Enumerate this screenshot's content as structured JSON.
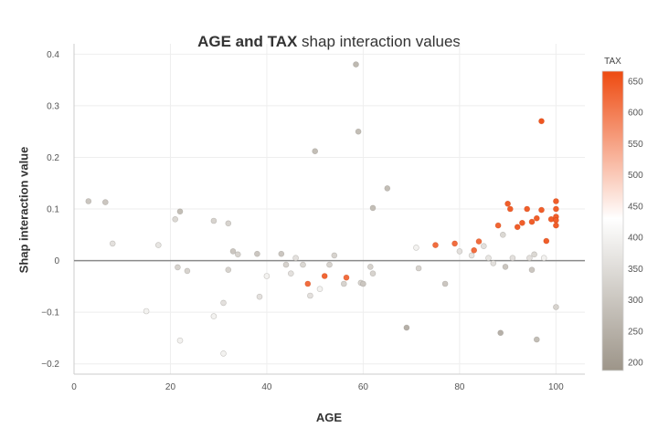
{
  "chart_data": {
    "type": "scatter",
    "title_bold": "AGE and TAX",
    "title_rest": " shap interaction values",
    "xlabel": "AGE",
    "ylabel": "Shap interaction value",
    "xlim": [
      0,
      106
    ],
    "ylim": [
      -0.22,
      0.42
    ],
    "x_ticks": [
      0,
      20,
      40,
      60,
      80,
      100
    ],
    "y_ticks": [
      -0.2,
      -0.1,
      0,
      0.1,
      0.2,
      0.3,
      0.4
    ],
    "y_tick_labels": [
      "−0.2",
      "−0.1",
      "0",
      "0.1",
      "0.2",
      "0.3",
      "0.4"
    ],
    "grid": true,
    "zero_line": true,
    "colorbar": {
      "title": "TAX",
      "min": 187,
      "max": 666,
      "ticks": [
        200,
        250,
        300,
        350,
        400,
        450,
        500,
        550,
        600,
        650
      ],
      "colors": {
        "low": "#9d9589",
        "mid": "#ffffff",
        "high": "#ee4a10"
      },
      "mid_value": 430
    },
    "points": [
      {
        "x": 3,
        "y": 0.115,
        "c": 300
      },
      {
        "x": 6.5,
        "y": 0.113,
        "c": 300
      },
      {
        "x": 8,
        "y": 0.033,
        "c": 360
      },
      {
        "x": 15,
        "y": -0.098,
        "c": 400
      },
      {
        "x": 17.5,
        "y": 0.03,
        "c": 370
      },
      {
        "x": 21,
        "y": 0.08,
        "c": 340
      },
      {
        "x": 21.5,
        "y": -0.013,
        "c": 330
      },
      {
        "x": 22,
        "y": 0.095,
        "c": 280
      },
      {
        "x": 22,
        "y": -0.155,
        "c": 400
      },
      {
        "x": 23.5,
        "y": -0.02,
        "c": 330
      },
      {
        "x": 29,
        "y": 0.077,
        "c": 330
      },
      {
        "x": 29,
        "y": -0.108,
        "c": 400
      },
      {
        "x": 31,
        "y": -0.18,
        "c": 400
      },
      {
        "x": 31,
        "y": -0.082,
        "c": 360
      },
      {
        "x": 32,
        "y": 0.072,
        "c": 330
      },
      {
        "x": 32,
        "y": -0.018,
        "c": 330
      },
      {
        "x": 33,
        "y": 0.018,
        "c": 300
      },
      {
        "x": 34,
        "y": 0.012,
        "c": 330
      },
      {
        "x": 38,
        "y": 0.013,
        "c": 300
      },
      {
        "x": 38.5,
        "y": -0.07,
        "c": 360
      },
      {
        "x": 40,
        "y": -0.03,
        "c": 400
      },
      {
        "x": 43,
        "y": 0.013,
        "c": 300
      },
      {
        "x": 44,
        "y": -0.008,
        "c": 330
      },
      {
        "x": 45,
        "y": -0.025,
        "c": 360
      },
      {
        "x": 46,
        "y": 0.005,
        "c": 360
      },
      {
        "x": 47.5,
        "y": -0.008,
        "c": 340
      },
      {
        "x": 48.5,
        "y": -0.045,
        "c": 620
      },
      {
        "x": 49,
        "y": -0.068,
        "c": 360
      },
      {
        "x": 50,
        "y": 0.212,
        "c": 280
      },
      {
        "x": 51,
        "y": -0.055,
        "c": 400
      },
      {
        "x": 52,
        "y": -0.03,
        "c": 630
      },
      {
        "x": 53,
        "y": -0.008,
        "c": 330
      },
      {
        "x": 54,
        "y": 0.01,
        "c": 330
      },
      {
        "x": 56,
        "y": -0.045,
        "c": 330
      },
      {
        "x": 56.5,
        "y": -0.033,
        "c": 620
      },
      {
        "x": 58.5,
        "y": 0.38,
        "c": 270
      },
      {
        "x": 59,
        "y": 0.25,
        "c": 280
      },
      {
        "x": 59.5,
        "y": -0.043,
        "c": 330
      },
      {
        "x": 60,
        "y": -0.045,
        "c": 300
      },
      {
        "x": 61.5,
        "y": -0.012,
        "c": 330
      },
      {
        "x": 62,
        "y": 0.102,
        "c": 280
      },
      {
        "x": 62,
        "y": -0.025,
        "c": 330
      },
      {
        "x": 65,
        "y": 0.14,
        "c": 280
      },
      {
        "x": 69,
        "y": -0.13,
        "c": 250
      },
      {
        "x": 71,
        "y": 0.025,
        "c": 400
      },
      {
        "x": 71.5,
        "y": -0.015,
        "c": 330
      },
      {
        "x": 75,
        "y": 0.03,
        "c": 620
      },
      {
        "x": 77,
        "y": -0.045,
        "c": 300
      },
      {
        "x": 79,
        "y": 0.033,
        "c": 620
      },
      {
        "x": 80,
        "y": 0.018,
        "c": 360
      },
      {
        "x": 82.5,
        "y": 0.01,
        "c": 370
      },
      {
        "x": 83,
        "y": 0.02,
        "c": 620
      },
      {
        "x": 84,
        "y": 0.037,
        "c": 620
      },
      {
        "x": 85,
        "y": 0.028,
        "c": 360
      },
      {
        "x": 86,
        "y": 0.005,
        "c": 370
      },
      {
        "x": 87,
        "y": -0.005,
        "c": 360
      },
      {
        "x": 88,
        "y": 0.068,
        "c": 630
      },
      {
        "x": 88.5,
        "y": -0.14,
        "c": 250
      },
      {
        "x": 89,
        "y": 0.05,
        "c": 340
      },
      {
        "x": 89.5,
        "y": -0.012,
        "c": 300
      },
      {
        "x": 90,
        "y": 0.11,
        "c": 640
      },
      {
        "x": 90.5,
        "y": 0.1,
        "c": 640
      },
      {
        "x": 91,
        "y": 0.005,
        "c": 360
      },
      {
        "x": 92,
        "y": 0.065,
        "c": 640
      },
      {
        "x": 93,
        "y": 0.073,
        "c": 640
      },
      {
        "x": 94,
        "y": 0.1,
        "c": 640
      },
      {
        "x": 94.5,
        "y": 0.005,
        "c": 360
      },
      {
        "x": 95,
        "y": -0.018,
        "c": 300
      },
      {
        "x": 95,
        "y": 0.075,
        "c": 640
      },
      {
        "x": 95.5,
        "y": 0.012,
        "c": 340
      },
      {
        "x": 96,
        "y": 0.082,
        "c": 640
      },
      {
        "x": 96,
        "y": -0.153,
        "c": 280
      },
      {
        "x": 97,
        "y": 0.27,
        "c": 650
      },
      {
        "x": 97,
        "y": 0.098,
        "c": 640
      },
      {
        "x": 97.5,
        "y": 0.005,
        "c": 400
      },
      {
        "x": 98,
        "y": 0.038,
        "c": 640
      },
      {
        "x": 99,
        "y": 0.08,
        "c": 640
      },
      {
        "x": 100,
        "y": 0.115,
        "c": 640
      },
      {
        "x": 100,
        "y": 0.1,
        "c": 640
      },
      {
        "x": 100,
        "y": 0.085,
        "c": 640
      },
      {
        "x": 100,
        "y": 0.078,
        "c": 640
      },
      {
        "x": 100,
        "y": 0.068,
        "c": 640
      },
      {
        "x": 100,
        "y": -0.09,
        "c": 330
      }
    ]
  }
}
